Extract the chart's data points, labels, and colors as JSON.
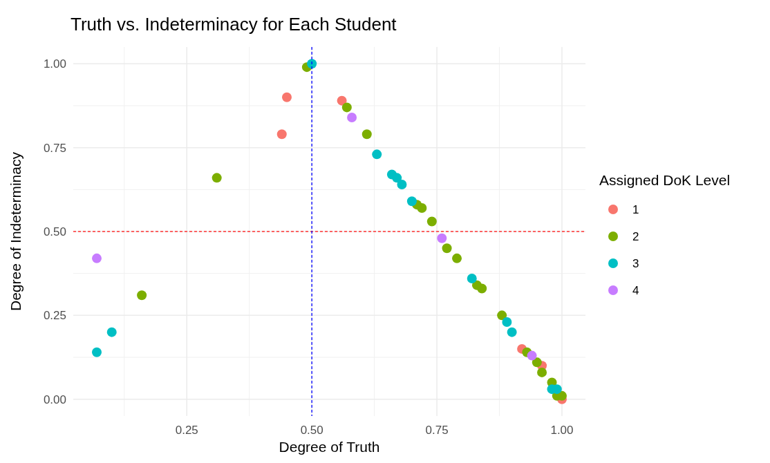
{
  "chart_data": {
    "type": "scatter",
    "title": "Truth vs. Indeterminacy for Each Student",
    "xlabel": "Degree of Truth",
    "ylabel": "Degree of Indeterminacy",
    "legend_title": "Assigned DoK Level",
    "legend": "right",
    "grid": true,
    "marker": "circle",
    "xlim": [
      0.023,
      1.047
    ],
    "ylim": [
      -0.05,
      1.05
    ],
    "xticks": [
      {
        "value": 0.25,
        "label": "0.25"
      },
      {
        "value": 0.5,
        "label": "0.50"
      },
      {
        "value": 0.75,
        "label": "0.75"
      },
      {
        "value": 1,
        "label": "1.00"
      }
    ],
    "yticks": [
      {
        "value": 0,
        "label": "0.00"
      },
      {
        "value": 0.25,
        "label": "0.25"
      },
      {
        "value": 0.5,
        "label": "0.50"
      },
      {
        "value": 0.75,
        "label": "0.75"
      },
      {
        "value": 1,
        "label": "1.00"
      }
    ],
    "ref_lines": [
      {
        "axis": "y",
        "value": 0.5,
        "color": "#ff3333",
        "line_style": "dashed"
      },
      {
        "axis": "x",
        "value": 0.5,
        "color": "#0000ff",
        "line_style": "dashed"
      }
    ],
    "series": [
      {
        "name": "1",
        "color": "#f8766d",
        "x": [
          0.44,
          0.45,
          0.56,
          0.92,
          0.96,
          1.0
        ],
        "values": [
          0.79,
          0.9,
          0.89,
          0.15,
          0.1,
          0.0
        ]
      },
      {
        "name": "2",
        "color": "#7cae00",
        "x": [
          0.49,
          0.57,
          0.61,
          0.31,
          0.16,
          0.71,
          0.72,
          0.74,
          0.77,
          0.79,
          0.83,
          0.84,
          0.88,
          0.93,
          0.95,
          0.96,
          0.98,
          0.99,
          1.0
        ],
        "values": [
          0.99,
          0.87,
          0.79,
          0.66,
          0.31,
          0.58,
          0.57,
          0.53,
          0.45,
          0.42,
          0.34,
          0.33,
          0.25,
          0.14,
          0.11,
          0.08,
          0.05,
          0.01,
          0.01
        ]
      },
      {
        "name": "3",
        "color": "#00bfc4",
        "x": [
          0.5,
          0.63,
          0.66,
          0.67,
          0.68,
          0.7,
          0.1,
          0.07,
          0.82,
          0.89,
          0.9,
          0.98,
          0.99
        ],
        "values": [
          1.0,
          0.73,
          0.67,
          0.66,
          0.64,
          0.59,
          0.2,
          0.14,
          0.36,
          0.23,
          0.2,
          0.03,
          0.03
        ]
      },
      {
        "name": "4",
        "color": "#c77cff",
        "x": [
          0.58,
          0.07,
          0.76,
          0.94
        ],
        "values": [
          0.84,
          0.42,
          0.48,
          0.13
        ]
      }
    ]
  }
}
